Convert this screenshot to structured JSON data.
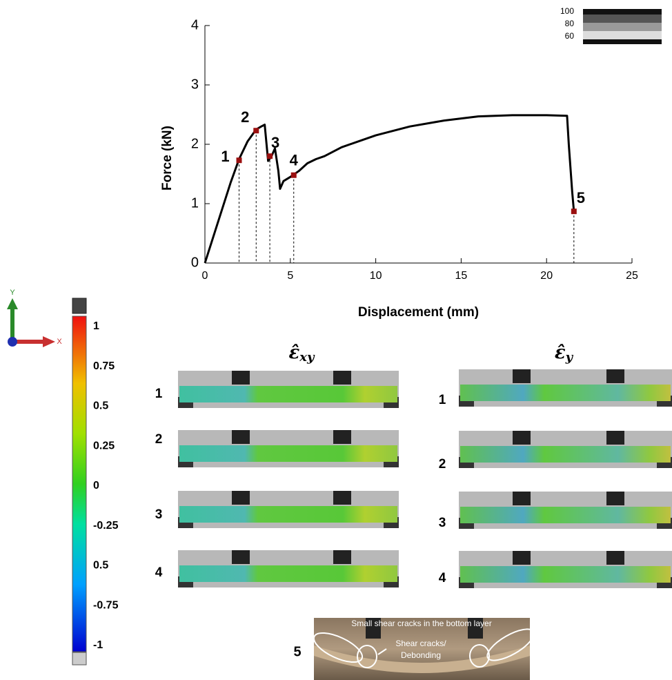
{
  "chart_data": {
    "type": "line",
    "xlabel": "Displacement (mm)",
    "ylabel": "Force (kN)",
    "xlim": [
      0,
      25
    ],
    "ylim": [
      0,
      4
    ],
    "xticks": [
      0,
      5,
      10,
      15,
      20,
      25
    ],
    "yticks": [
      0,
      1,
      2,
      3,
      4
    ],
    "series": [
      {
        "color": "#000000",
        "x": [
          0,
          0.5,
          1,
          1.5,
          2,
          2.5,
          3,
          3.3,
          3.5,
          3.7,
          3.9,
          4.1,
          4.3,
          4.4,
          4.6,
          5,
          5.5,
          6,
          6.5,
          7,
          8,
          9,
          10,
          12,
          14,
          16,
          18,
          20,
          21.2,
          21.3,
          21.5,
          21.6
        ],
        "values": [
          0,
          0.45,
          0.9,
          1.35,
          1.75,
          2.05,
          2.25,
          2.3,
          2.33,
          1.72,
          1.8,
          1.93,
          1.55,
          1.25,
          1.38,
          1.45,
          1.55,
          1.68,
          1.75,
          1.8,
          1.95,
          2.05,
          2.15,
          2.3,
          2.4,
          2.47,
          2.49,
          2.49,
          2.48,
          2.0,
          1.2,
          0.87
        ]
      }
    ],
    "points": {
      "color": "#9b1010",
      "labels": [
        "1",
        "2",
        "3",
        "4",
        "5"
      ],
      "x": [
        2,
        3,
        3.8,
        5.2,
        21.6
      ],
      "values": [
        1.73,
        2.23,
        1.8,
        1.48,
        0.87
      ]
    }
  },
  "scale_legend": {
    "labels": [
      "100",
      "80",
      "60"
    ]
  },
  "axis_triad": {
    "x": "X",
    "y": "Y"
  },
  "colorbar": {
    "labels": [
      "1",
      "0.75",
      "0.5",
      "0.25",
      "0",
      "-0.25",
      "0.5",
      "-0.75",
      "-1"
    ]
  },
  "columns": [
    {
      "title": "ε̂",
      "subscript": "xy",
      "rows": [
        "1",
        "2",
        "3",
        "4"
      ]
    },
    {
      "title": "ε̂",
      "subscript": "y",
      "rows": [
        "1",
        "2",
        "3",
        "4"
      ]
    }
  ],
  "photo": {
    "label": "5",
    "annotation_top": "Small shear cracks in the bottom layer",
    "annotation_mid": [
      "Shear cracks/",
      "Debonding"
    ]
  }
}
